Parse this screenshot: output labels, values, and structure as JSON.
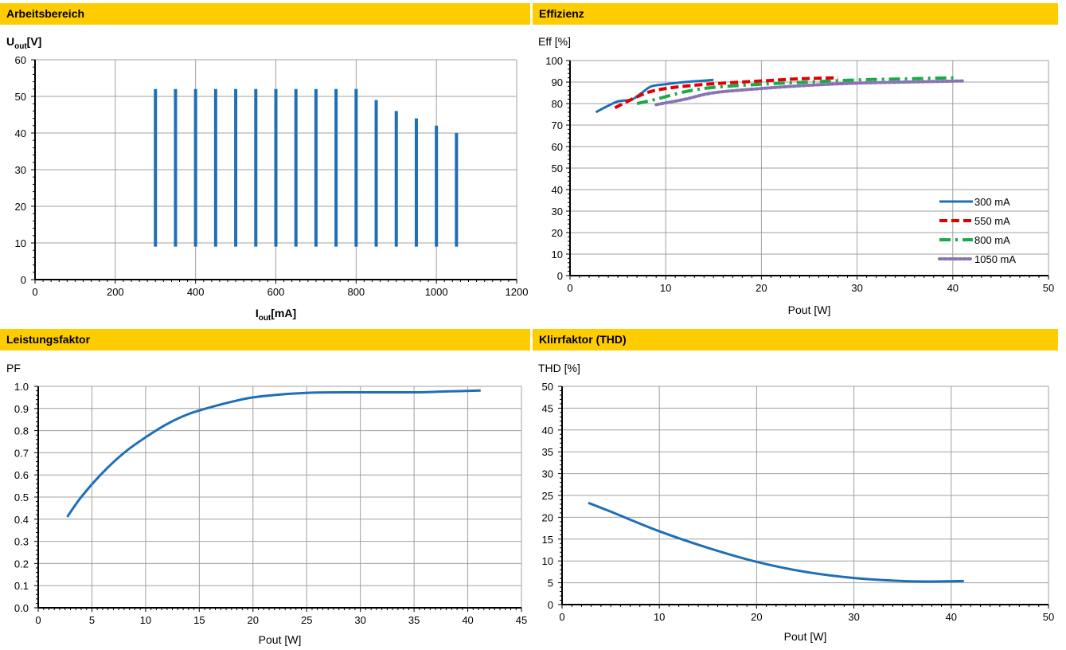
{
  "colors": {
    "header_bg": "#ffcc00",
    "line_blue": "#1f6fb5",
    "line_red": "#e00000",
    "line_green": "#1aaa4a",
    "line_purple": "#8a72b5",
    "grid": "#a0a0a0"
  },
  "panels": [
    {
      "header": "Arbeitsbereich"
    },
    {
      "header": "Effizienz"
    },
    {
      "header": "Leistungsfaktor"
    },
    {
      "header": "Klirrfaktor (THD)"
    }
  ],
  "chart_data": [
    {
      "type": "bar",
      "title": "Arbeitsbereich",
      "ylabel_main": "U",
      "ylabel_sub": "out",
      "ylabel_unit": "[V]",
      "xlabel_main": "I",
      "xlabel_sub": "out",
      "xlabel_unit": "[mA]",
      "xlim": [
        0,
        1200
      ],
      "ylim": [
        0,
        60
      ],
      "xticks": [
        "0",
        "200",
        "400",
        "600",
        "800",
        "1000",
        "1200"
      ],
      "yticks": [
        "0",
        "10",
        "20",
        "30",
        "40",
        "50",
        "60"
      ],
      "grid": true,
      "ranges": [
        {
          "x": 300,
          "ymin": 9,
          "ymax": 52
        },
        {
          "x": 350,
          "ymin": 9,
          "ymax": 52
        },
        {
          "x": 400,
          "ymin": 9,
          "ymax": 52
        },
        {
          "x": 450,
          "ymin": 9,
          "ymax": 52
        },
        {
          "x": 500,
          "ymin": 9,
          "ymax": 52
        },
        {
          "x": 550,
          "ymin": 9,
          "ymax": 52
        },
        {
          "x": 600,
          "ymin": 9,
          "ymax": 52
        },
        {
          "x": 650,
          "ymin": 9,
          "ymax": 52
        },
        {
          "x": 700,
          "ymin": 9,
          "ymax": 52
        },
        {
          "x": 750,
          "ymin": 9,
          "ymax": 52
        },
        {
          "x": 800,
          "ymin": 9,
          "ymax": 52
        },
        {
          "x": 850,
          "ymin": 9,
          "ymax": 49
        },
        {
          "x": 900,
          "ymin": 9,
          "ymax": 46
        },
        {
          "x": 950,
          "ymin": 9,
          "ymax": 44
        },
        {
          "x": 1000,
          "ymin": 9,
          "ymax": 42
        },
        {
          "x": 1050,
          "ymin": 9,
          "ymax": 40
        }
      ]
    },
    {
      "type": "line",
      "title": "Effizienz",
      "ylabel": "Eff [%]",
      "xlabel": "Pout [W]",
      "xlim": [
        0,
        50
      ],
      "ylim": [
        0,
        100
      ],
      "xticks": [
        "0",
        "10",
        "20",
        "30",
        "40",
        "50"
      ],
      "yticks": [
        "0",
        "10",
        "20",
        "30",
        "40",
        "50",
        "60",
        "70",
        "80",
        "90",
        "100"
      ],
      "grid": true,
      "legend": "bottom-right",
      "series": [
        {
          "name": "300 mA",
          "style": "solid",
          "x": [
            2.7,
            4,
            5,
            6.5,
            7.5,
            8.5,
            10,
            12,
            15
          ],
          "y": [
            76,
            79,
            81,
            82,
            85,
            88,
            89,
            90,
            91
          ]
        },
        {
          "name": "550 mA",
          "style": "dashed",
          "x": [
            4.7,
            6,
            8,
            10,
            13,
            16,
            20,
            24,
            28
          ],
          "y": [
            78,
            81,
            85,
            87,
            88.5,
            89.5,
            90.5,
            91.5,
            92
          ]
        },
        {
          "name": "800 mA",
          "style": "dashdot",
          "x": [
            7,
            9,
            12,
            15,
            20,
            25,
            30,
            35,
            40.5
          ],
          "y": [
            80,
            82,
            85.5,
            87.5,
            89,
            90,
            91,
            91.5,
            92
          ]
        },
        {
          "name": "1050 mA",
          "style": "dotted",
          "x": [
            9,
            12,
            15,
            20,
            25,
            30,
            35,
            41
          ],
          "y": [
            79.5,
            82,
            85,
            87,
            88.5,
            89.5,
            90,
            90.5
          ]
        }
      ]
    },
    {
      "type": "line",
      "title": "Leistungsfaktor",
      "ylabel": "PF",
      "xlabel": "Pout [W]",
      "xlim": [
        0,
        45
      ],
      "ylim": [
        0,
        1.0
      ],
      "xticks": [
        "0",
        "5",
        "10",
        "15",
        "20",
        "25",
        "30",
        "35",
        "40",
        "45"
      ],
      "yticks": [
        "0.0",
        "0.1",
        "0.2",
        "0.3",
        "0.4",
        "0.5",
        "0.6",
        "0.7",
        "0.8",
        "0.9",
        "1.0"
      ],
      "grid": true,
      "series": [
        {
          "x": [
            2.7,
            4,
            6,
            8,
            10,
            12,
            14,
            16,
            18,
            20,
            23,
            26,
            30,
            35,
            38,
            41.2
          ],
          "y": [
            0.41,
            0.5,
            0.61,
            0.7,
            0.77,
            0.83,
            0.875,
            0.905,
            0.93,
            0.95,
            0.965,
            0.972,
            0.973,
            0.973,
            0.977,
            0.981
          ]
        }
      ]
    },
    {
      "type": "line",
      "title": "Klirrfaktor (THD)",
      "ylabel": "THD [%]",
      "xlabel": "Pout [W]",
      "xlim": [
        0,
        50
      ],
      "ylim": [
        0,
        50
      ],
      "xticks": [
        "0",
        "10",
        "20",
        "30",
        "40",
        "50"
      ],
      "yticks": [
        "0",
        "5",
        "10",
        "15",
        "20",
        "25",
        "30",
        "35",
        "40",
        "45",
        "50"
      ],
      "grid": true,
      "series": [
        {
          "x": [
            2.7,
            5,
            10,
            15,
            20,
            25,
            30,
            35,
            38,
            41.3
          ],
          "y": [
            23.3,
            21.3,
            16.8,
            13.0,
            9.8,
            7.5,
            6.1,
            5.4,
            5.3,
            5.4
          ]
        }
      ]
    }
  ]
}
